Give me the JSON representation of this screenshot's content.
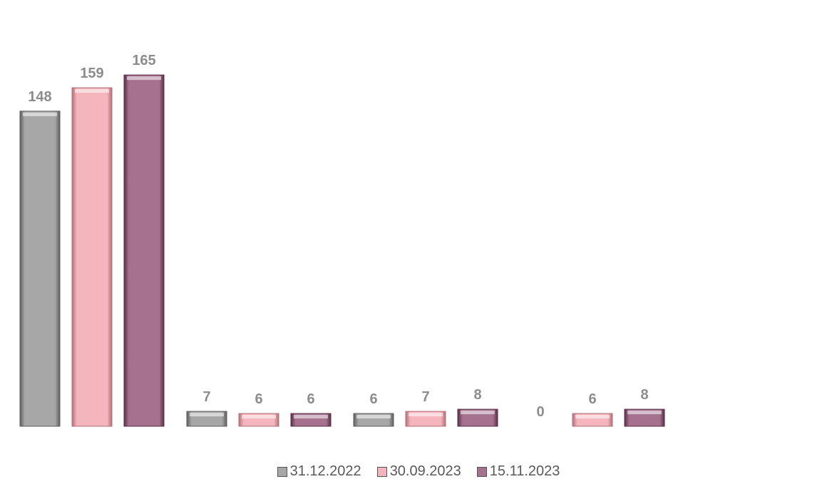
{
  "chart_data": {
    "type": "bar",
    "title": "",
    "xlabel": "",
    "ylabel": "",
    "categories": [
      "",
      "",
      "",
      ""
    ],
    "ylim": [
      0,
      190
    ],
    "grid": false,
    "legend_position": "bottom",
    "series": [
      {
        "name": "31.12.2022",
        "color": "#a7a7a7",
        "edge": "#5e5e5e",
        "values": [
          148,
          7,
          6,
          0
        ]
      },
      {
        "name": "30.09.2023",
        "color": "#f4b5bd",
        "edge": "#b27078",
        "values": [
          159,
          6,
          7,
          6
        ]
      },
      {
        "name": "15.11.2023",
        "color": "#a5718f",
        "edge": "#5a2f47",
        "values": [
          165,
          6,
          8,
          8
        ]
      }
    ]
  }
}
